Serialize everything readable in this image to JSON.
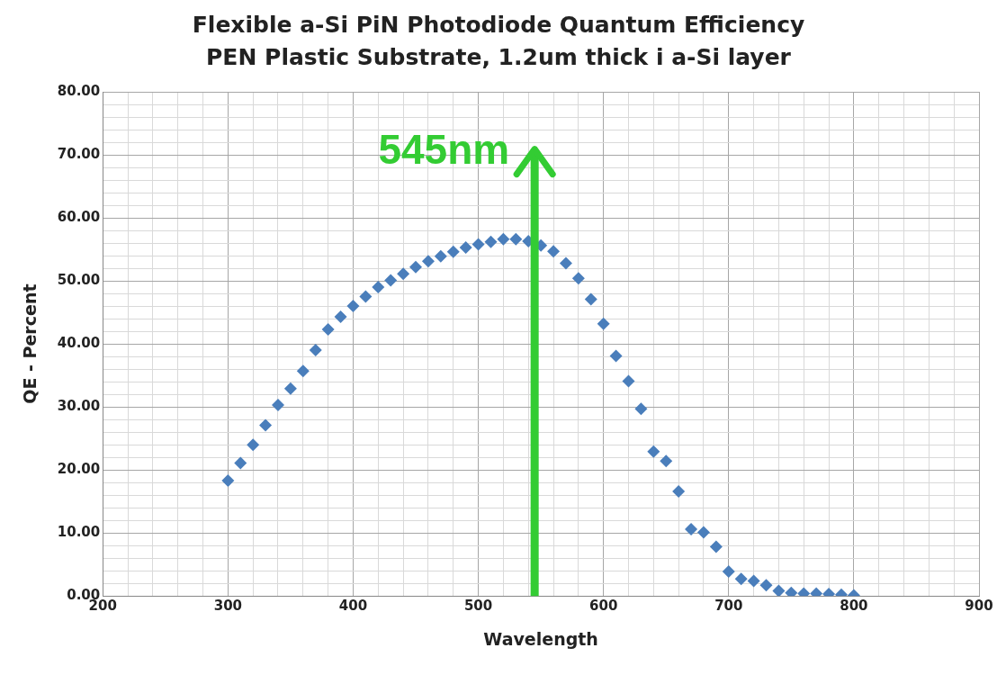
{
  "chart_data": {
    "type": "scatter",
    "title": "Flexible a-Si PiN Photodiode Quantum Efficiency",
    "subtitle": "PEN Plastic Substrate, 1.2um thick i a-Si layer",
    "xlabel": "Wavelength",
    "ylabel": "QE - Percent",
    "marker": "diamond",
    "grid": true,
    "legend": false,
    "x": [
      300,
      310,
      320,
      330,
      340,
      350,
      360,
      370,
      380,
      390,
      400,
      410,
      420,
      430,
      440,
      450,
      460,
      470,
      480,
      490,
      500,
      510,
      520,
      530,
      540,
      550,
      560,
      570,
      580,
      590,
      600,
      610,
      620,
      630,
      640,
      650,
      660,
      670,
      680,
      690,
      700,
      710,
      720,
      730,
      740,
      750,
      760,
      770,
      780,
      790,
      800
    ],
    "series": [
      {
        "color": "#4a7ebb",
        "values": [
          18.3,
          21.1,
          24.0,
          27.1,
          30.3,
          32.9,
          35.7,
          39.0,
          42.3,
          44.3,
          46.0,
          47.5,
          49.0,
          50.1,
          51.1,
          52.2,
          53.1,
          53.9,
          54.6,
          55.3,
          55.8,
          56.2,
          56.6,
          56.6,
          56.3,
          55.6,
          54.7,
          52.8,
          50.4,
          47.1,
          43.2,
          38.1,
          34.1,
          29.7,
          22.9,
          21.4,
          16.6,
          10.6,
          10.1,
          7.8,
          3.9,
          2.7,
          2.4,
          1.7,
          0.8,
          0.5,
          0.4,
          0.4,
          0.3,
          0.2,
          0.1
        ]
      }
    ],
    "xlim": [
      200,
      900
    ],
    "xticks": [
      200,
      {
        "value": 220,
        "label": null
      },
      {
        "value": 240,
        "label": null
      },
      {
        "value": 260,
        "label": null
      },
      {
        "value": 280,
        "label": null
      },
      300,
      {
        "value": 320,
        "label": null
      },
      {
        "value": 340,
        "label": null
      },
      {
        "value": 360,
        "label": null
      },
      {
        "value": 380,
        "label": null
      },
      400,
      {
        "value": 420,
        "label": null
      },
      {
        "value": 440,
        "label": null
      },
      {
        "value": 460,
        "label": null
      },
      {
        "value": 480,
        "label": null
      },
      500,
      {
        "value": 520,
        "label": null
      },
      {
        "value": 540,
        "label": null
      },
      {
        "value": 560,
        "label": null
      },
      {
        "value": 580,
        "label": null
      },
      600,
      {
        "value": 620,
        "label": null
      },
      {
        "value": 640,
        "label": null
      },
      {
        "value": 660,
        "label": null
      },
      {
        "value": 680,
        "label": null
      },
      700,
      {
        "value": 720,
        "label": null
      },
      {
        "value": 740,
        "label": null
      },
      {
        "value": 760,
        "label": null
      },
      {
        "value": 780,
        "label": null
      },
      800,
      {
        "value": 820,
        "label": null
      },
      {
        "value": 840,
        "label": null
      },
      {
        "value": 860,
        "label": null
      },
      {
        "value": 880,
        "label": null
      },
      900
    ],
    "ylim": [
      0,
      80
    ],
    "yticks": [
      {
        "value": 0,
        "label": "0.00"
      },
      {
        "value": 2,
        "label": null
      },
      {
        "value": 4,
        "label": null
      },
      {
        "value": 6,
        "label": null
      },
      {
        "value": 8,
        "label": null
      },
      {
        "value": 10,
        "label": "10.00"
      },
      {
        "value": 12,
        "label": null
      },
      {
        "value": 14,
        "label": null
      },
      {
        "value": 16,
        "label": null
      },
      {
        "value": 18,
        "label": null
      },
      {
        "value": 20,
        "label": "20.00"
      },
      {
        "value": 22,
        "label": null
      },
      {
        "value": 24,
        "label": null
      },
      {
        "value": 26,
        "label": null
      },
      {
        "value": 28,
        "label": null
      },
      {
        "value": 30,
        "label": "30.00"
      },
      {
        "value": 32,
        "label": null
      },
      {
        "value": 34,
        "label": null
      },
      {
        "value": 36,
        "label": null
      },
      {
        "value": 38,
        "label": null
      },
      {
        "value": 40,
        "label": "40.00"
      },
      {
        "value": 42,
        "label": null
      },
      {
        "value": 44,
        "label": null
      },
      {
        "value": 46,
        "label": null
      },
      {
        "value": 48,
        "label": null
      },
      {
        "value": 50,
        "label": "50.00"
      },
      {
        "value": 52,
        "label": null
      },
      {
        "value": 54,
        "label": null
      },
      {
        "value": 56,
        "label": null
      },
      {
        "value": 58,
        "label": null
      },
      {
        "value": 60,
        "label": "60.00"
      },
      {
        "value": 62,
        "label": null
      },
      {
        "value": 64,
        "label": null
      },
      {
        "value": 66,
        "label": null
      },
      {
        "value": 68,
        "label": null
      },
      {
        "value": 70,
        "label": "70.00"
      },
      {
        "value": 72,
        "label": null
      },
      {
        "value": 74,
        "label": null
      },
      {
        "value": 76,
        "label": null
      },
      {
        "value": 78,
        "label": null
      },
      {
        "value": 80,
        "label": "80.00"
      }
    ],
    "ref_lines": [
      {
        "axis": "x",
        "value": 545,
        "label": "545nm",
        "color": "#33cc33"
      }
    ]
  }
}
